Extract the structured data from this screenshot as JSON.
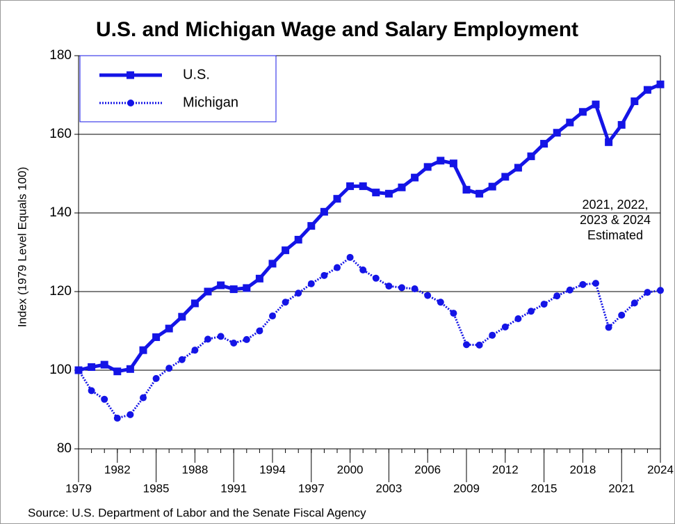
{
  "chart_data": {
    "type": "line",
    "title": "U.S. and Michigan Wage and Salary Employment",
    "y_label": "Index (1979 Level Equals 100)",
    "source": "Source: U.S. Department of Labor and the Senate Fiscal Agency",
    "annotation": [
      "2021, 2022,",
      "2023 & 2024",
      "Estimated"
    ],
    "x": [
      1979,
      1980,
      1981,
      1982,
      1983,
      1984,
      1985,
      1986,
      1987,
      1988,
      1989,
      1990,
      1991,
      1992,
      1993,
      1994,
      1995,
      1996,
      1997,
      1998,
      1999,
      2000,
      2001,
      2002,
      2003,
      2004,
      2005,
      2006,
      2007,
      2008,
      2009,
      2010,
      2011,
      2012,
      2013,
      2014,
      2015,
      2016,
      2017,
      2018,
      2019,
      2020,
      2021,
      2022,
      2023,
      2024
    ],
    "series": [
      {
        "name": "U.S.",
        "color": "#1414e6",
        "line_style": "solid",
        "marker": "square",
        "values": [
          100,
          100.8,
          101.4,
          99.7,
          100.3,
          105.1,
          108.4,
          110.6,
          113.6,
          117,
          120,
          121.6,
          120.6,
          120.9,
          123.3,
          127.1,
          130.5,
          133.2,
          136.7,
          140.3,
          143.6,
          146.8,
          146.8,
          145.2,
          144.9,
          146.5,
          149,
          151.7,
          153.3,
          152.6,
          145.9,
          144.9,
          146.7,
          149.2,
          151.5,
          154.4,
          157.6,
          160.4,
          163,
          165.7,
          167.6,
          158,
          162.4,
          168.4,
          171.3,
          172.7
        ]
      },
      {
        "name": "Michigan",
        "color": "#1414e6",
        "line_style": "dotted",
        "marker": "circle",
        "values": [
          100,
          94.8,
          92.6,
          87.8,
          88.7,
          93,
          97.9,
          100.5,
          102.7,
          105.1,
          107.9,
          108.6,
          106.9,
          107.8,
          110,
          113.8,
          117.3,
          119.6,
          122,
          124.1,
          126.1,
          128.7,
          125.5,
          123.4,
          121.4,
          121,
          120.7,
          119,
          117.3,
          114.5,
          106.5,
          106.4,
          108.9,
          111,
          113.1,
          115,
          116.8,
          118.9,
          120.4,
          121.8,
          122.1,
          110.9,
          114,
          117.1,
          119.8,
          120.3
        ]
      }
    ],
    "xlim": [
      1979,
      2024
    ],
    "xticks": [
      1979,
      1982,
      1985,
      1988,
      1991,
      1994,
      1997,
      2000,
      2003,
      2006,
      2009,
      2012,
      2015,
      2018,
      2021,
      2024
    ],
    "ylim": [
      80,
      180
    ],
    "yticks": [
      80,
      100,
      120,
      140,
      160,
      180
    ],
    "grid": true,
    "legend": "upper left"
  }
}
